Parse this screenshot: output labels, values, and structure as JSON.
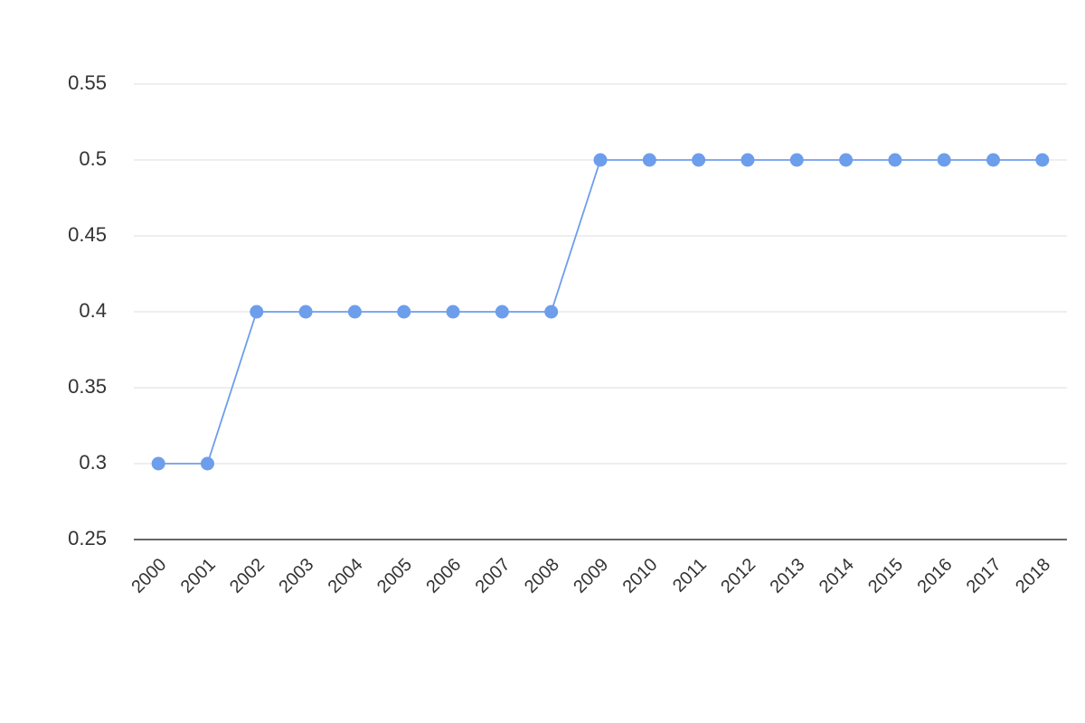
{
  "chart_data": {
    "type": "line",
    "categories": [
      "2000",
      "2001",
      "2002",
      "2003",
      "2004",
      "2005",
      "2006",
      "2007",
      "2008",
      "2009",
      "2010",
      "2011",
      "2012",
      "2013",
      "2014",
      "2015",
      "2016",
      "2017",
      "2018"
    ],
    "values": [
      0.3,
      0.3,
      0.4,
      0.4,
      0.4,
      0.4,
      0.4,
      0.4,
      0.4,
      0.5,
      0.5,
      0.5,
      0.5,
      0.5,
      0.5,
      0.5,
      0.5,
      0.5,
      0.5
    ],
    "color": "#6d9eeb",
    "ylim": [
      0.25,
      0.55
    ],
    "yticks": [
      0.25,
      0.3,
      0.35,
      0.4,
      0.45,
      0.5,
      0.55
    ],
    "grid": true
  }
}
